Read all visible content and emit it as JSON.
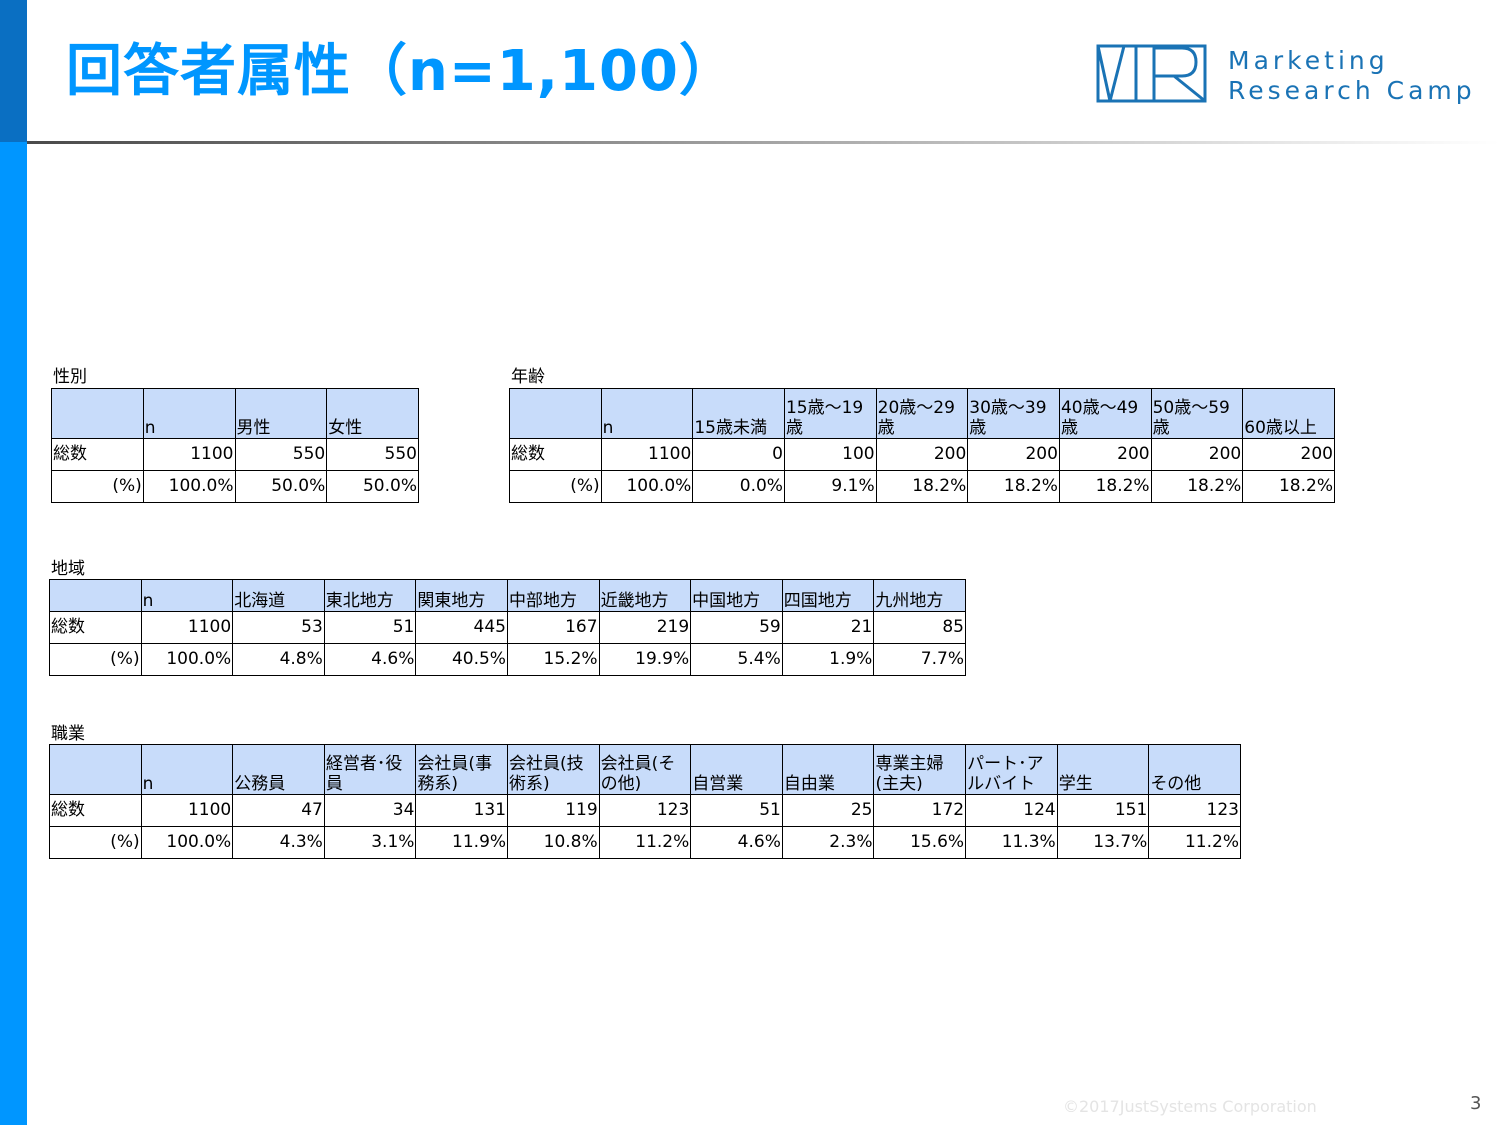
{
  "title": "回答者属性（n=1,100）",
  "logo": {
    "line1": "Marketing",
    "line2": "Research Camp",
    "color": "#1a73b5"
  },
  "colors": {
    "accent": "#0096ff",
    "header_fill": "#c8dcfa"
  },
  "gender": {
    "label": "性別",
    "headers": [
      "",
      "n",
      "男性",
      "女性"
    ],
    "rows": [
      [
        "総数",
        "1100",
        "550",
        "550"
      ],
      [
        "(%)",
        "100.0%",
        "50.0%",
        "50.0%"
      ]
    ]
  },
  "age": {
    "label": "年齢",
    "headers": [
      "",
      "n",
      "15歳未満",
      "15歳～19歳",
      "20歳～29歳",
      "30歳～39歳",
      "40歳～49歳",
      "50歳～59歳",
      "60歳以上"
    ],
    "rows": [
      [
        "総数",
        "1100",
        "0",
        "100",
        "200",
        "200",
        "200",
        "200",
        "200"
      ],
      [
        "(%)",
        "100.0%",
        "0.0%",
        "9.1%",
        "18.2%",
        "18.2%",
        "18.2%",
        "18.2%",
        "18.2%"
      ]
    ]
  },
  "region": {
    "label": "地域",
    "headers": [
      "",
      "n",
      "北海道",
      "東北地方",
      "関東地方",
      "中部地方",
      "近畿地方",
      "中国地方",
      "四国地方",
      "九州地方"
    ],
    "rows": [
      [
        "総数",
        "1100",
        "53",
        "51",
        "445",
        "167",
        "219",
        "59",
        "21",
        "85"
      ],
      [
        "(%)",
        "100.0%",
        "4.8%",
        "4.6%",
        "40.5%",
        "15.2%",
        "19.9%",
        "5.4%",
        "1.9%",
        "7.7%"
      ]
    ]
  },
  "job": {
    "label": "職業",
    "headers": [
      "",
      "n",
      "公務員",
      "経営者･役員",
      "会社員(事務系)",
      "会社員(技術系)",
      "会社員(その他)",
      "自営業",
      "自由業",
      "専業主婦(主夫)",
      "パート･アルバイト",
      "学生",
      "その他"
    ],
    "rows": [
      [
        "総数",
        "1100",
        "47",
        "34",
        "131",
        "119",
        "123",
        "51",
        "25",
        "172",
        "124",
        "151",
        "123"
      ],
      [
        "(%)",
        "100.0%",
        "4.3%",
        "3.1%",
        "11.9%",
        "10.8%",
        "11.2%",
        "4.6%",
        "2.3%",
        "15.6%",
        "11.3%",
        "13.7%",
        "11.2%"
      ]
    ]
  },
  "footer": {
    "copyright": "©2017JustSystems Corporation",
    "page": "3"
  }
}
